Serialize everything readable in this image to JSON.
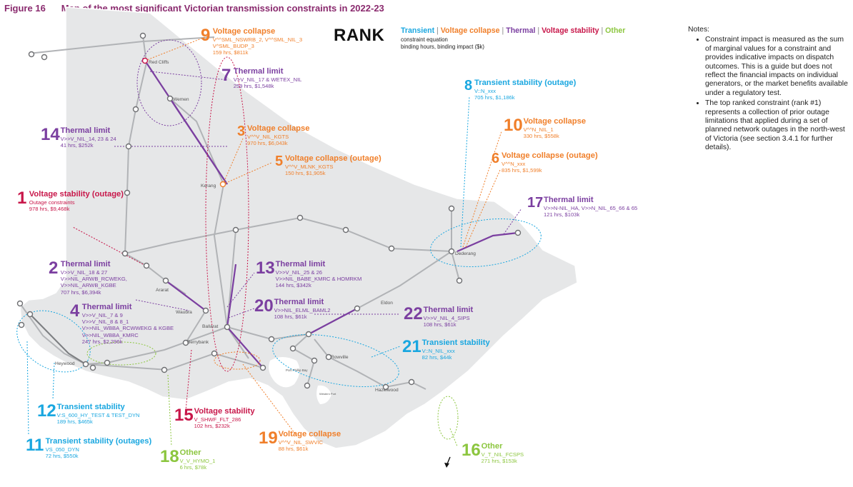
{
  "figure": {
    "number": "Figure 16",
    "title": "Map of the most significant Victorian transmission constraints in 2022-23"
  },
  "legend": {
    "rank_heading": "RANK",
    "categories": [
      {
        "label": "Transient",
        "color": "#1aa7e0"
      },
      {
        "label": "Voltage collapse",
        "color": "#f07f2a"
      },
      {
        "label": "Thermal",
        "color": "#7b3fa0"
      },
      {
        "label": "Voltage stability",
        "color": "#c8174a"
      },
      {
        "label": "Other",
        "color": "#8cc63f"
      }
    ],
    "separator": " | ",
    "line1": "constraint equation",
    "line2": "binding hours, binding impact ($k)"
  },
  "notes": {
    "heading": "Notes:",
    "items": [
      "Constraint impact is measured as the sum of marginal values for a constraint and provides indicative impacts on dispatch outcomes. This is a guide but does not reflect the financial impacts on individual generators, or the market benefits available under a regulatory test.",
      "The top ranked constraint (rank #1) represents a collection of prior outage limitations that applied during a set of planned network outages in the north-west of Victoria (see section 3.4.1 for further details)."
    ]
  },
  "places": [
    "Red Cliffs",
    "Wemen",
    "Kerang",
    "Dederang",
    "Ararat",
    "Waubra",
    "Ballarat",
    "Berrybank",
    "Heywood",
    "Eldon",
    "Rowville",
    "Hazelwood",
    "Port Phillip Bay",
    "Western Port"
  ],
  "constraints": [
    {
      "rank": "9",
      "category": "Voltage collapse",
      "title": "Voltage collapse",
      "equation": [
        "V^^SML_NSWRB_2, V^^SML_NIL_3",
        "V^SML_BUDP_3"
      ],
      "stats": "159 hrs, $811k"
    },
    {
      "rank": "7",
      "category": "Thermal",
      "title": "Thermal limit",
      "equation": [
        "V>V_NIL_17 & WETEX_NIL"
      ],
      "stats": "259 hrs, $1,548k"
    },
    {
      "rank": "14",
      "category": "Thermal",
      "title": "Thermal limit",
      "equation": [
        "V>>V_NIL_14, 23 & 24"
      ],
      "stats": "41 hrs, $252k"
    },
    {
      "rank": "3",
      "category": "Voltage collapse",
      "title": "Voltage collapse",
      "equation": [
        "V^^V_NIL_KGTS"
      ],
      "stats": "970 hrs, $6,043k"
    },
    {
      "rank": "5",
      "category": "Voltage collapse",
      "title": "Voltage collapse (outage)",
      "equation": [
        "V^^V_MLNK_KGTS"
      ],
      "stats": "150 hrs, $1,905k"
    },
    {
      "rank": "1",
      "category": "Voltage stability",
      "title": "Voltage stability (outage)",
      "equation": [
        "Outage constraints"
      ],
      "stats": "978 hrs, $9,468k"
    },
    {
      "rank": "8",
      "category": "Transient",
      "title": "Transient stability (outage)",
      "equation": [
        "V::N_xxx"
      ],
      "stats": "705 hrs, $1,186k"
    },
    {
      "rank": "10",
      "category": "Voltage collapse",
      "title": "Voltage collapse",
      "equation": [
        "V^^N_NIL_1"
      ],
      "stats": "330 hrs, $558k"
    },
    {
      "rank": "6",
      "category": "Voltage collapse",
      "title": "Voltage collapse (outage)",
      "equation": [
        "V^^N_xxx"
      ],
      "stats": "835 hrs, $1,599k"
    },
    {
      "rank": "17",
      "category": "Thermal",
      "title": "Thermal limit",
      "equation": [
        "V>>N-NIL_HA, V>>N_NIL_65_66 & 65"
      ],
      "stats": "121 hrs, $103k"
    },
    {
      "rank": "2",
      "category": "Thermal",
      "title": "Thermal limit",
      "equation": [
        "V>>V_NIL_18 & 27",
        "V>>NIL_ARWB_RCWEKG,",
        "V>>NIL_ARWB_KGBE"
      ],
      "stats": "707 hrs, $6,394k"
    },
    {
      "rank": "13",
      "category": "Thermal",
      "title": "Thermal limit",
      "equation": [
        "V>>V_NIL_25 & 26",
        "V>>NIL_BABE_KMRC & HOMRKM"
      ],
      "stats": "144 hrs, $342k"
    },
    {
      "rank": "4",
      "category": "Thermal",
      "title": "Thermal limit",
      "equation": [
        "V>>V_NIL_7 & 9",
        "V>>V_NIL_8 & 8_1",
        "V>>NIL_WBBA_RCWWEKG & KGBE",
        "V>>NIL_WBBA_KMRC"
      ],
      "stats": "247 hrs, $2,296k"
    },
    {
      "rank": "20",
      "category": "Thermal",
      "title": "Thermal limit",
      "equation": [
        "V>>NIL_ELML_BAML2"
      ],
      "stats": "108 hrs, $61k"
    },
    {
      "rank": "22",
      "category": "Thermal",
      "title": "Thermal limit",
      "equation": [
        "V>>V_NIL_4_SIPS"
      ],
      "stats": "108 hrs, $61k"
    },
    {
      "rank": "21",
      "category": "Transient",
      "title": "Transient stability",
      "equation": [
        "V::N_NIL_xxx"
      ],
      "stats": "82 hrs, $44k"
    },
    {
      "rank": "12",
      "category": "Transient",
      "title": "Transient stability",
      "equation": [
        "V:S_600_HY_TEST & TEST_DYN"
      ],
      "stats": "189 hrs, $465k"
    },
    {
      "rank": "11",
      "category": "Transient",
      "title": "Transient stability (outages)",
      "equation": [
        "VS_050_DYN"
      ],
      "stats": "72 hrs, $550k"
    },
    {
      "rank": "15",
      "category": "Voltage stability",
      "title": "Voltage stability",
      "equation": [
        "V_SHWF_FLT_286"
      ],
      "stats": "102 hrs, $232k"
    },
    {
      "rank": "18",
      "category": "Other",
      "title": "Other",
      "equation": [
        "V_V_HYMO_1"
      ],
      "stats": "6 hrs, $78k"
    },
    {
      "rank": "19",
      "category": "Voltage collapse",
      "title": "Voltage collapse",
      "equation": [
        "V^^V_NIL_SWVIC"
      ],
      "stats": "88 hrs, $61k"
    },
    {
      "rank": "16",
      "category": "Other",
      "title": "Other",
      "equation": [
        "V_T_NIL_FCSPS"
      ],
      "stats": "271 hrs, $153k"
    }
  ]
}
